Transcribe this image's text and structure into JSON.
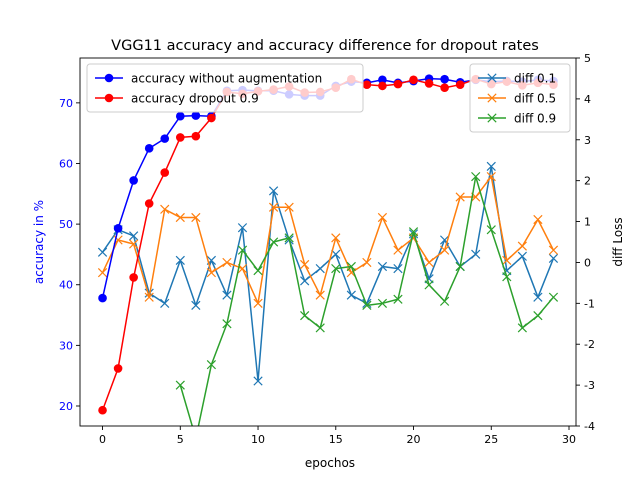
{
  "chart_data": {
    "type": "line",
    "title": "VGG11 accuracy and accuracy difference for dropout rates",
    "xlabel": "epochos",
    "ylabel_left": "accuracy in %",
    "ylabel_right": "diff Loss",
    "xlim": [
      -1.45,
      30.45
    ],
    "ylim_left": [
      16.7,
      77.4
    ],
    "ylim_right": [
      -4,
      5
    ],
    "x_ticks": [
      0,
      5,
      10,
      15,
      20,
      25,
      30
    ],
    "y_ticks_left": [
      20,
      30,
      40,
      50,
      60,
      70
    ],
    "y_ticks_right": [
      -4,
      -3,
      -2,
      -1,
      0,
      1,
      2,
      3,
      4,
      5
    ],
    "colors": {
      "acc_no_aug": "#0000ff",
      "acc_dropout": "#ff0000",
      "diff_01": "#1f77b4",
      "diff_05": "#ff7f0e",
      "diff_09": "#2ca02c",
      "left_axis_label": "#0000ff"
    },
    "legend_left": {
      "placement": "upper-left",
      "entries": [
        "accuracy without augmentation",
        "accuracy dropout 0.9"
      ]
    },
    "legend_right": {
      "placement": "upper-right",
      "entries": [
        "diff 0.1",
        "diff 0.5",
        "diff 0.9"
      ]
    },
    "series_left": [
      {
        "name": "accuracy without augmentation",
        "color_key": "acc_no_aug",
        "x": [
          0,
          1,
          2,
          3,
          4,
          5,
          6,
          7,
          8,
          9,
          10,
          11,
          12,
          13,
          14,
          15,
          16,
          17,
          18,
          19,
          20,
          21,
          22,
          23,
          24,
          25,
          26,
          27,
          28,
          29
        ],
        "values": [
          37.8,
          49.3,
          57.2,
          62.5,
          64.1,
          67.8,
          67.9,
          67.8,
          72.0,
          72.1,
          72.0,
          72.0,
          71.4,
          71.2,
          71.2,
          72.8,
          73.5,
          73.3,
          73.8,
          73.3,
          73.6,
          74.0,
          73.9,
          73.4,
          73.8,
          73.5,
          73.6,
          73.5,
          73.8,
          73.6
        ]
      },
      {
        "name": "accuracy dropout 0.9",
        "color_key": "acc_dropout",
        "x": [
          0,
          1,
          2,
          3,
          4,
          5,
          6,
          7,
          8,
          9,
          10,
          11,
          12,
          13,
          14,
          15,
          16,
          17,
          18,
          19,
          20,
          21,
          22,
          23,
          24,
          25,
          26,
          27,
          28,
          29
        ],
        "values": [
          19.3,
          26.2,
          41.2,
          53.4,
          58.5,
          64.3,
          64.5,
          67.5,
          71.8,
          71.5,
          71.9,
          72.2,
          72.7,
          71.7,
          71.8,
          72.5,
          73.9,
          73.0,
          72.8,
          73.1,
          73.8,
          73.2,
          72.5,
          73.0,
          73.9,
          73.1,
          73.5,
          72.9,
          73.3,
          73.0
        ]
      }
    ],
    "series_right": [
      {
        "name": "diff 0.1",
        "color_key": "diff_01",
        "x": [
          0,
          1,
          2,
          3,
          4,
          5,
          6,
          7,
          8,
          9,
          10,
          11,
          12,
          13,
          14,
          15,
          16,
          17,
          18,
          19,
          20,
          21,
          22,
          23,
          24,
          25,
          26,
          27,
          28,
          29
        ],
        "values": [
          0.25,
          0.8,
          0.65,
          -0.75,
          -1.0,
          0.05,
          -1.05,
          0.05,
          -0.8,
          0.85,
          -2.9,
          1.75,
          0.55,
          -0.45,
          -0.15,
          0.2,
          -0.8,
          -1.0,
          -0.1,
          -0.15,
          0.7,
          -0.4,
          0.55,
          -0.1,
          0.2,
          2.35,
          -0.2,
          0.15,
          -0.85,
          0.1
        ]
      },
      {
        "name": "diff 0.5",
        "color_key": "diff_05",
        "x": [
          0,
          1,
          2,
          3,
          4,
          5,
          6,
          7,
          8,
          9,
          10,
          11,
          12,
          13,
          14,
          15,
          16,
          17,
          18,
          19,
          20,
          21,
          22,
          23,
          24,
          25,
          26,
          27,
          28,
          29
        ],
        "values": [
          -0.25,
          0.55,
          0.45,
          -0.85,
          1.3,
          1.1,
          1.1,
          -0.25,
          0.0,
          -0.15,
          -1.0,
          1.35,
          1.35,
          -0.05,
          -0.8,
          0.6,
          -0.25,
          0.0,
          1.1,
          0.3,
          0.6,
          0.0,
          0.3,
          1.6,
          1.6,
          2.1,
          0.05,
          0.4,
          1.05,
          0.3
        ]
      },
      {
        "name": "diff 0.9",
        "color_key": "diff_09",
        "x": [
          0,
          1,
          2,
          3,
          4,
          5,
          6,
          7,
          8,
          9,
          10,
          11,
          12,
          13,
          14,
          15,
          16,
          17,
          18,
          19,
          20,
          21,
          22,
          23,
          24,
          25,
          26,
          27,
          28,
          29
        ],
        "values": [
          null,
          null,
          null,
          null,
          null,
          -3.0,
          -4.3,
          -2.5,
          -1.5,
          0.3,
          -0.2,
          0.5,
          0.6,
          -1.3,
          -1.6,
          -0.15,
          -0.1,
          -1.05,
          -1.0,
          -0.9,
          0.75,
          -0.55,
          -0.95,
          -0.1,
          2.1,
          0.8,
          -0.35,
          -1.6,
          -1.3,
          -0.85
        ]
      }
    ]
  }
}
